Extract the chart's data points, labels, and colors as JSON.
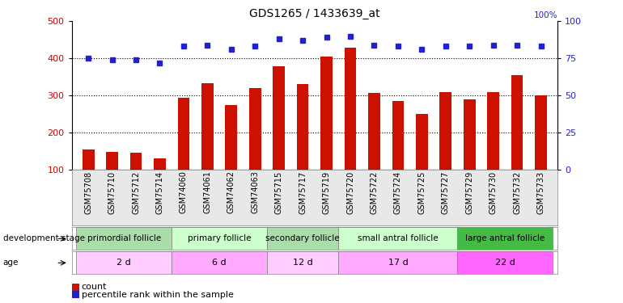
{
  "title": "GDS1265 / 1433639_at",
  "samples": [
    "GSM75708",
    "GSM75710",
    "GSM75712",
    "GSM75714",
    "GSM74060",
    "GSM74061",
    "GSM74062",
    "GSM74063",
    "GSM75715",
    "GSM75717",
    "GSM75719",
    "GSM75720",
    "GSM75722",
    "GSM75724",
    "GSM75725",
    "GSM75727",
    "GSM75729",
    "GSM75730",
    "GSM75732",
    "GSM75733"
  ],
  "counts": [
    155,
    148,
    145,
    130,
    293,
    333,
    275,
    320,
    378,
    330,
    405,
    428,
    307,
    285,
    250,
    310,
    290,
    310,
    355,
    300
  ],
  "percentile": [
    75,
    74,
    74,
    72,
    83,
    84,
    81,
    83,
    88,
    87,
    89,
    90,
    84,
    83,
    81,
    83,
    83,
    84,
    84,
    83
  ],
  "bar_color": "#cc1100",
  "dot_color": "#2222cc",
  "ylim_left": [
    100,
    500
  ],
  "ylim_right": [
    0,
    100
  ],
  "yticks_left": [
    100,
    200,
    300,
    400,
    500
  ],
  "yticks_right": [
    0,
    25,
    50,
    75,
    100
  ],
  "groups": [
    {
      "label": "primordial follicle",
      "age": "2 d",
      "stage_color": "#99ee99",
      "age_color": "#ffbbff",
      "start": 0,
      "end": 4
    },
    {
      "label": "primary follicle",
      "age": "6 d",
      "stage_color": "#bbffbb",
      "age_color": "#ffccff",
      "start": 4,
      "end": 8
    },
    {
      "label": "secondary follicle",
      "age": "12 d",
      "stage_color": "#99ee99",
      "age_color": "#ffbbff",
      "start": 8,
      "end": 11
    },
    {
      "label": "small antral follicle",
      "age": "17 d",
      "stage_color": "#bbffbb",
      "age_color": "#ffccff",
      "start": 11,
      "end": 16
    },
    {
      "label": "large antral follicle",
      "age": "22 d",
      "stage_color": "#55cc55",
      "age_color": "#ff88ff",
      "start": 16,
      "end": 20
    }
  ],
  "legend_count_label": "count",
  "legend_pct_label": "percentile rank within the sample",
  "dev_stage_label": "development stage",
  "age_label": "age",
  "grid_vals": [
    200,
    300,
    400
  ],
  "bar_width": 0.5
}
